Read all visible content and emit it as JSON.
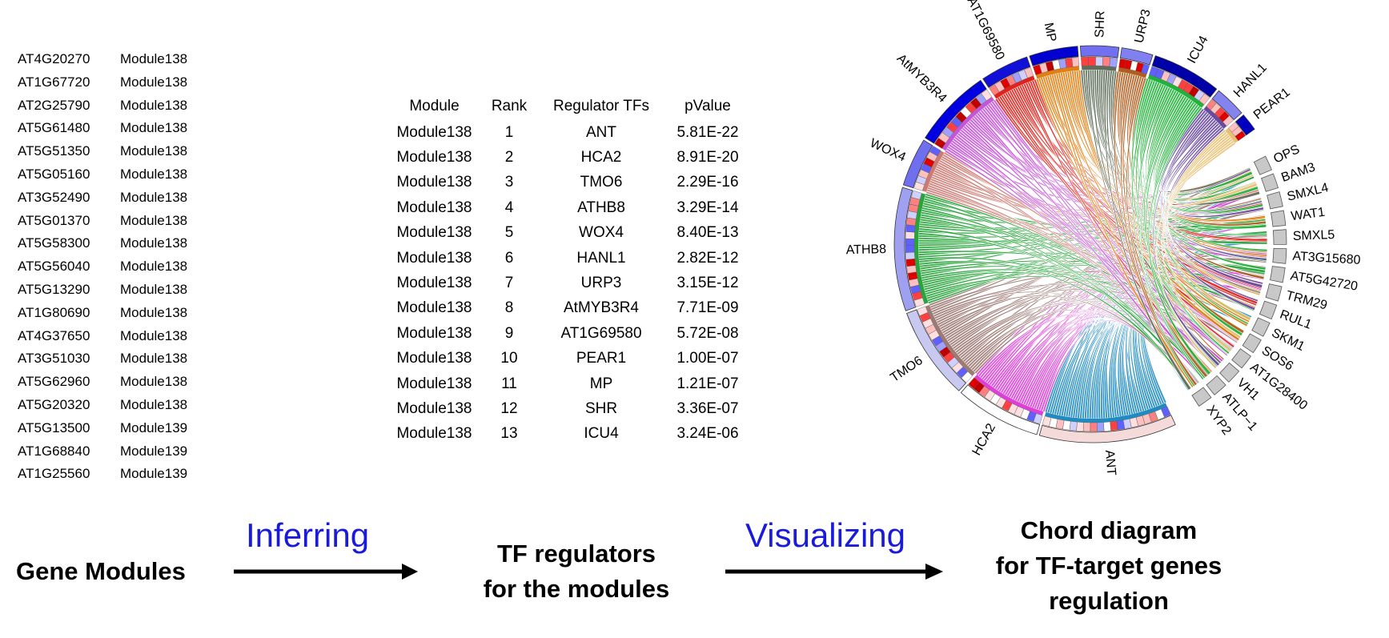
{
  "gene_modules": [
    {
      "gene": "AT4G20270",
      "module": "Module138"
    },
    {
      "gene": "AT1G67720",
      "module": "Module138"
    },
    {
      "gene": "AT2G25790",
      "module": "Module138"
    },
    {
      "gene": "AT5G61480",
      "module": "Module138"
    },
    {
      "gene": "AT5G51350",
      "module": "Module138"
    },
    {
      "gene": "AT5G05160",
      "module": "Module138"
    },
    {
      "gene": "AT3G52490",
      "module": "Module138"
    },
    {
      "gene": "AT5G01370",
      "module": "Module138"
    },
    {
      "gene": "AT5G58300",
      "module": "Module138"
    },
    {
      "gene": "AT5G56040",
      "module": "Module138"
    },
    {
      "gene": "AT5G13290",
      "module": "Module138"
    },
    {
      "gene": "AT1G80690",
      "module": "Module138"
    },
    {
      "gene": "AT4G37650",
      "module": "Module138"
    },
    {
      "gene": "AT3G51030",
      "module": "Module138"
    },
    {
      "gene": "AT5G62960",
      "module": "Module138"
    },
    {
      "gene": "AT5G20320",
      "module": "Module138"
    },
    {
      "gene": "AT5G13500",
      "module": "Module139"
    },
    {
      "gene": "AT1G68840",
      "module": "Module139"
    },
    {
      "gene": "AT1G25560",
      "module": "Module139"
    }
  ],
  "regulator_table": {
    "headers": [
      "Module",
      "Rank",
      "Regulator TFs",
      "pValue"
    ],
    "rows": [
      [
        "Module138",
        "1",
        "ANT",
        "5.81E-22"
      ],
      [
        "Module138",
        "2",
        "HCA2",
        "8.91E-20"
      ],
      [
        "Module138",
        "3",
        "TMO6",
        "2.29E-16"
      ],
      [
        "Module138",
        "4",
        "ATHB8",
        "3.29E-14"
      ],
      [
        "Module138",
        "5",
        "WOX4",
        "8.40E-13"
      ],
      [
        "Module138",
        "6",
        "HANL1",
        "2.82E-12"
      ],
      [
        "Module138",
        "7",
        "URP3",
        "3.15E-12"
      ],
      [
        "Module138",
        "8",
        "AtMYB3R4",
        "7.71E-09"
      ],
      [
        "Module138",
        "9",
        "AT1G69580",
        "5.72E-08"
      ],
      [
        "Module138",
        "10",
        "PEAR1",
        "1.00E-07"
      ],
      [
        "Module138",
        "11",
        "MP",
        "1.21E-07"
      ],
      [
        "Module138",
        "12",
        "SHR",
        "3.36E-07"
      ],
      [
        "Module138",
        "13",
        "ICU4",
        "3.24E-06"
      ]
    ]
  },
  "chord": {
    "tf_sectors": [
      {
        "name": "ANT",
        "color": "#1f8bc0",
        "ring": "#f5dada"
      },
      {
        "name": "HCA2",
        "color": "#dd3fd8",
        "ring": "#ffffff"
      },
      {
        "name": "TMO6",
        "color": "#9d7b75",
        "ring": "#c8c8f0"
      },
      {
        "name": "ATHB8",
        "color": "#27a43a",
        "ring": "#a0a0f0"
      },
      {
        "name": "WOX4",
        "color": "#cc7a72",
        "ring": "#6f6ff0"
      },
      {
        "name": "AtMYB3R4",
        "color": "#c455d6",
        "ring": "#0000e0"
      },
      {
        "name": "AT1G69580",
        "color": "#e0221c",
        "ring": "#1010d8"
      },
      {
        "name": "MP",
        "color": "#e07f12",
        "ring": "#0000d0"
      },
      {
        "name": "SHR",
        "color": "#5f6e5a",
        "ring": "#7070f0"
      },
      {
        "name": "URP3",
        "color": "#b05e1e",
        "ring": "#8080f0"
      },
      {
        "name": "ICU4",
        "color": "#21b23a",
        "ring": "#0000a8"
      },
      {
        "name": "HANL1",
        "color": "#6a4a9e",
        "ring": "#8484f0"
      },
      {
        "name": "PEAR1",
        "color": "#e8c070",
        "ring": "#0000c0"
      }
    ],
    "target_genes": [
      "OPS",
      "BAM3",
      "SMXL4",
      "WAT1",
      "SMXL5",
      "AT3G15680",
      "AT5G42720",
      "TRM29",
      "RUL1",
      "SKM1",
      "SOS6",
      "AT1G28400",
      "VH1",
      "ATLP−1",
      "XYP2"
    ]
  },
  "flow": {
    "step1": "Gene Modules",
    "action1": "Inferring",
    "step2_line1": "TF regulators",
    "step2_line2": "for the modules",
    "action2": "Visualizing",
    "step3_line1": "Chord diagram",
    "step3_line2": "for TF-target genes",
    "step3_line3": "regulation"
  }
}
